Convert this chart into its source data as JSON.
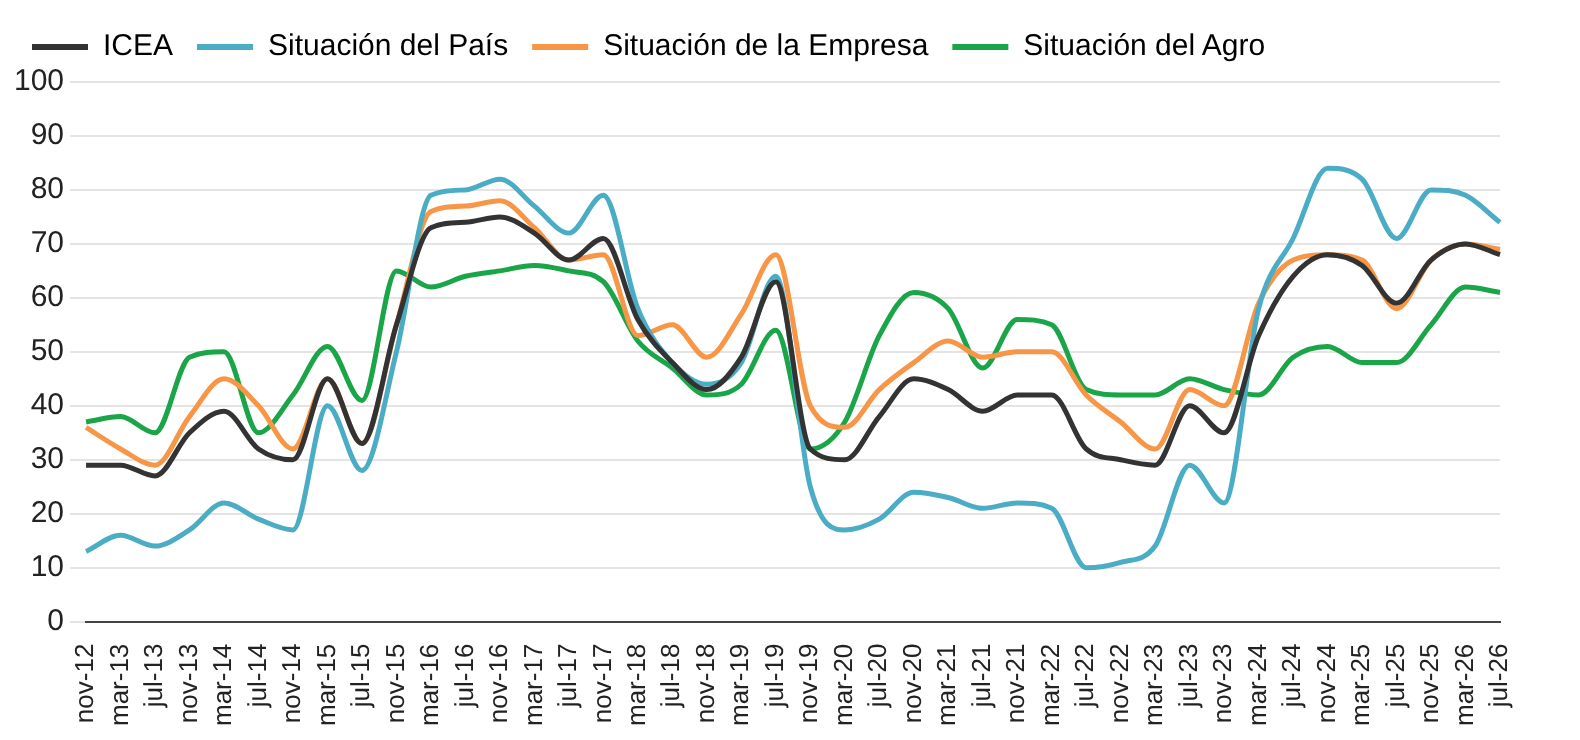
{
  "chart_data": {
    "type": "line",
    "categories": [
      "nov-12",
      "mar-13",
      "jul-13",
      "nov-13",
      "mar-14",
      "jul-14",
      "nov-14",
      "mar-15",
      "jul-15",
      "nov-15",
      "mar-16",
      "jul-16",
      "nov-16",
      "mar-17",
      "jul-17",
      "nov-17",
      "mar-18",
      "jul-18",
      "nov-18",
      "mar-19",
      "jul-19",
      "nov-19",
      "mar-20",
      "jul-20",
      "nov-20",
      "mar-21",
      "jul-21",
      "nov-21",
      "mar-22",
      "jul-22",
      "nov-22",
      "mar-23",
      "jul-23",
      "nov-23",
      "mar-24",
      "jul-24",
      "nov-24",
      "mar-25",
      "jul-25",
      "nov-25",
      "mar-26",
      "jul-26"
    ],
    "series": [
      {
        "name": "ICEA",
        "color": "#333333",
        "values": [
          29,
          29,
          27,
          35,
          39,
          32,
          30,
          45,
          33,
          55,
          73,
          74,
          75,
          72,
          67,
          71,
          56,
          48,
          43,
          49,
          63,
          32,
          30,
          38,
          45,
          43,
          39,
          42,
          42,
          32,
          30,
          29,
          40,
          35,
          53,
          64,
          68,
          66,
          59,
          67,
          70,
          68
        ]
      },
      {
        "name": "Situación del País",
        "color": "#4bacc6",
        "values": [
          13,
          16,
          14,
          17,
          22,
          19,
          17,
          40,
          28,
          50,
          79,
          80,
          82,
          77,
          72,
          79,
          58,
          48,
          44,
          48,
          64,
          25,
          17,
          19,
          24,
          23,
          21,
          22,
          21,
          10,
          11,
          14,
          29,
          22,
          58,
          71,
          84,
          82,
          71,
          80,
          79,
          74
        ]
      },
      {
        "name": "Situación de la Empresa",
        "color": "#f79646",
        "values": [
          36,
          32,
          29,
          38,
          45,
          40,
          32,
          45,
          33,
          55,
          76,
          77,
          78,
          73,
          67,
          68,
          53,
          55,
          49,
          57,
          68,
          40,
          36,
          43,
          48,
          52,
          49,
          50,
          50,
          42,
          37,
          32,
          43,
          40,
          59,
          67,
          68,
          67,
          58,
          67,
          70,
          69
        ]
      },
      {
        "name": "Situación del Agro",
        "color": "#1aa548",
        "values": [
          37,
          38,
          35,
          49,
          50,
          35,
          42,
          51,
          41,
          65,
          62,
          64,
          65,
          66,
          65,
          63,
          52,
          47,
          42,
          44,
          54,
          32,
          37,
          53,
          61,
          58,
          47,
          56,
          55,
          43,
          42,
          42,
          45,
          43,
          42,
          49,
          51,
          48,
          48,
          55,
          62,
          61
        ]
      }
    ],
    "ylim": [
      0,
      100
    ],
    "yticks": [
      0,
      10,
      20,
      30,
      40,
      50,
      60,
      70,
      80,
      90,
      100
    ],
    "grid": "y",
    "legend": "top",
    "marker": "none",
    "line_style": "solid"
  }
}
